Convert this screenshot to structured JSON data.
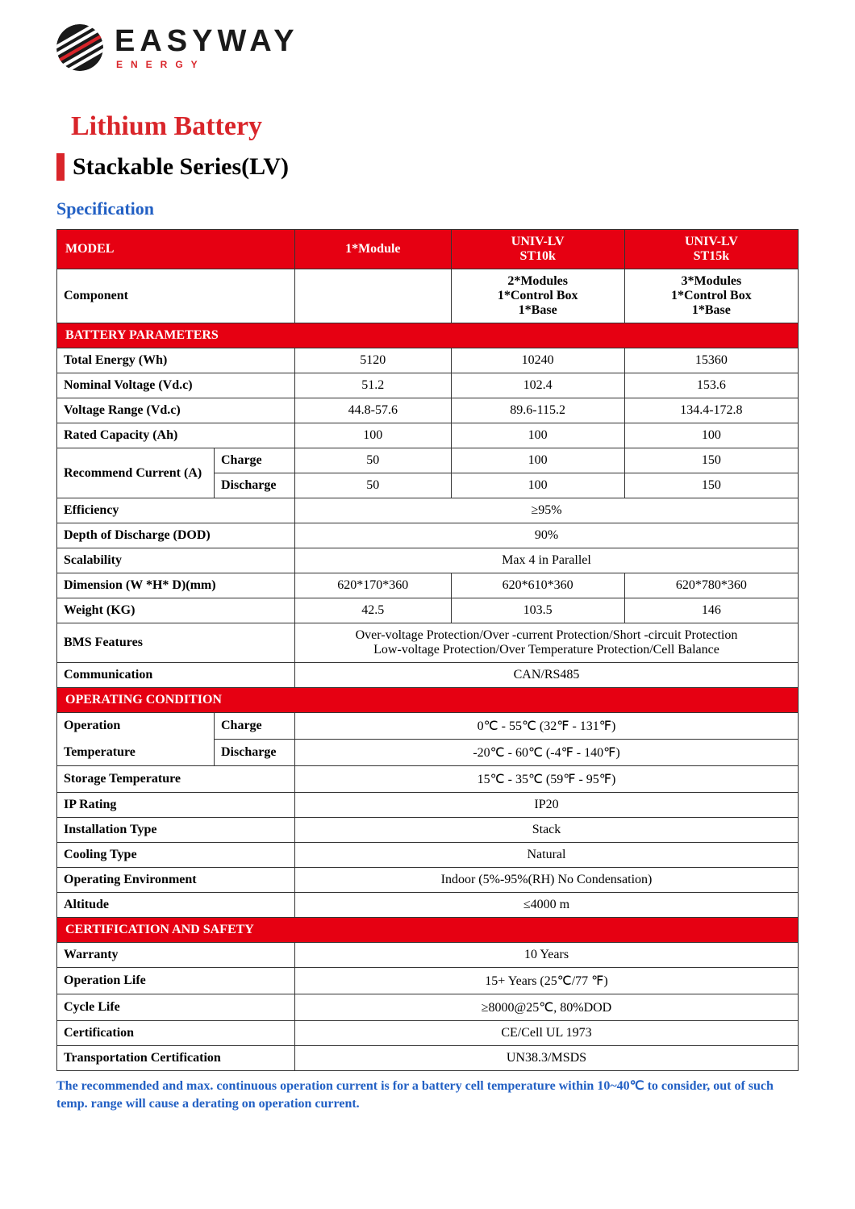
{
  "logo": {
    "main": "EASYWAY",
    "sub": "ENERGY"
  },
  "titles": {
    "main": "Lithium Battery",
    "sub": "Stackable Series(LV)",
    "spec": "Specification"
  },
  "header": {
    "model_label": "MODEL",
    "cols": [
      "1*Module",
      "UNIV-LV\nST10k",
      "UNIV-LV\nST15k"
    ]
  },
  "component": {
    "label": "Component",
    "vals": [
      "",
      "2*Modules\n1*Control Box\n1*Base",
      "3*Modules\n1*Control Box\n1*Base"
    ]
  },
  "sections": {
    "battery": "BATTERY PARAMETERS",
    "operating": "OPERATING CONDITION",
    "cert": "CERTIFICATION AND SAFETY"
  },
  "rows": {
    "total_energy": {
      "label": "Total Energy (Wh)",
      "vals": [
        "5120",
        "10240",
        "15360"
      ]
    },
    "nominal_voltage": {
      "label": "Nominal Voltage (Vd.c)",
      "vals": [
        "51.2",
        "102.4",
        "153.6"
      ]
    },
    "voltage_range": {
      "label": "Voltage Range (Vd.c)",
      "vals": [
        "44.8-57.6",
        "89.6-115.2",
        "134.4-172.8"
      ]
    },
    "rated_capacity": {
      "label": "Rated Capacity (Ah)",
      "vals": [
        "100",
        "100",
        "100"
      ]
    },
    "rec_current": {
      "label": "Recommend Current (A)",
      "charge_label": "Charge",
      "charge_vals": [
        "50",
        "100",
        "150"
      ],
      "discharge_label": "Discharge",
      "discharge_vals": [
        "50",
        "100",
        "150"
      ]
    },
    "efficiency": {
      "label": "Efficiency",
      "val": "≥95%"
    },
    "dod": {
      "label": "Depth of Discharge (DOD)",
      "val": "90%"
    },
    "scalability": {
      "label": "Scalability",
      "val": "Max 4 in Parallel"
    },
    "dimension": {
      "label": "Dimension (W *H* D)(mm)",
      "vals": [
        "620*170*360",
        "620*610*360",
        "620*780*360"
      ]
    },
    "weight": {
      "label": "Weight (KG)",
      "vals": [
        "42.5",
        "103.5",
        "146"
      ]
    },
    "bms": {
      "label": "BMS Features",
      "line1": "Over-voltage Protection/Over -current Protection/Short -circuit Protection",
      "line2": "Low-voltage Protection/Over Temperature Protection/Cell Balance"
    },
    "communication": {
      "label": "Communication",
      "val": "CAN/RS485"
    },
    "op_temp": {
      "row1_label": "Operation",
      "row2_label": "Temperature",
      "charge_label": "Charge",
      "charge_val": "0℃ - 55℃ (32℉ - 131℉)",
      "discharge_label": "Discharge",
      "discharge_val": "-20℃ - 60℃ (-4℉ - 140℉)"
    },
    "storage_temp": {
      "label": "Storage Temperature",
      "val": "15℃ - 35℃ (59℉ - 95℉)"
    },
    "ip": {
      "label": "IP Rating",
      "val": "IP20"
    },
    "install": {
      "label": "Installation Type",
      "val": "Stack"
    },
    "cooling": {
      "label": "Cooling Type",
      "val": "Natural"
    },
    "op_env": {
      "label": "Operating Environment",
      "val": "Indoor (5%-95%(RH) No Condensation)"
    },
    "altitude": {
      "label": "Altitude",
      "val": "≤4000 m"
    },
    "warranty": {
      "label": "Warranty",
      "val": "10 Years"
    },
    "op_life": {
      "label": "Operation Life",
      "val": "15+ Years  (25℃/77 ℉)"
    },
    "cycle_life": {
      "label": "Cycle Life",
      "val": "≥8000@25℃, 80%DOD"
    },
    "certification": {
      "label": "Certification",
      "val": "CE/Cell UL 1973"
    },
    "transport_cert": {
      "label": "Transportation Certification",
      "val": "UN38.3/MSDS"
    }
  },
  "footnote": "The recommended and max. continuous operation current is for a battery cell temperature within 10~40℃ to consider, out of such temp. range will cause a derating on operation current."
}
